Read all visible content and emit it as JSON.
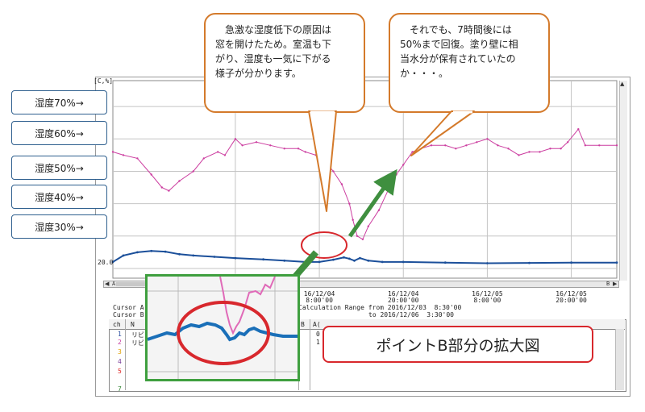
{
  "chart_data": {
    "type": "line",
    "unit_label": "[C,%]",
    "y_tick": "20.0",
    "x_ticks": [
      {
        "date": "16/12/04",
        "time": "8:00'00",
        "x_hours": 32
      },
      {
        "date": "16/12/04",
        "time": "20:00'00",
        "x_hours": 44
      },
      {
        "date": "16/12/05",
        "time": "8:00'00",
        "x_hours": 56
      },
      {
        "date": "16/12/05",
        "time": "20:00'00",
        "x_hours": 68
      }
    ],
    "x_range_hours": [
      2.5,
      74.5
    ],
    "y_range": [
      17,
      78
    ],
    "grid": true,
    "series": [
      {
        "color": "#cc3ea0",
        "points": [
          [
            2.5,
            56
          ],
          [
            4,
            55
          ],
          [
            6,
            54
          ],
          [
            8,
            49
          ],
          [
            9.5,
            45
          ],
          [
            10.5,
            44
          ],
          [
            12,
            47
          ],
          [
            14,
            50
          ],
          [
            15.5,
            54
          ],
          [
            17.5,
            56
          ],
          [
            18.5,
            55
          ],
          [
            20,
            60
          ],
          [
            21,
            58
          ],
          [
            23,
            59
          ],
          [
            25,
            58
          ],
          [
            27,
            57
          ],
          [
            29,
            57
          ],
          [
            30,
            56
          ],
          [
            31.5,
            55
          ],
          [
            32.5,
            54
          ],
          [
            34,
            50
          ],
          [
            35.2,
            46
          ],
          [
            36.3,
            40
          ],
          [
            36.8,
            35
          ],
          [
            37.4,
            30
          ],
          [
            38.2,
            29
          ],
          [
            39,
            33
          ],
          [
            40.5,
            38
          ],
          [
            41.8,
            44
          ],
          [
            43,
            49
          ],
          [
            44,
            52
          ],
          [
            45.3,
            56
          ],
          [
            46.5,
            57
          ],
          [
            48,
            58
          ],
          [
            50,
            58
          ],
          [
            51.5,
            57
          ],
          [
            53,
            58
          ],
          [
            54.5,
            59
          ],
          [
            56,
            60
          ],
          [
            57.5,
            58
          ],
          [
            59,
            57
          ],
          [
            60.5,
            55
          ],
          [
            62,
            56
          ],
          [
            63.5,
            56
          ],
          [
            65,
            57
          ],
          [
            66.5,
            57
          ],
          [
            67.5,
            59
          ],
          [
            69,
            63
          ],
          [
            70,
            58
          ],
          [
            72,
            58
          ],
          [
            74.5,
            58
          ]
        ]
      },
      {
        "color": "#1b4f9a",
        "points": [
          [
            2.5,
            22
          ],
          [
            4,
            24
          ],
          [
            6,
            25
          ],
          [
            8,
            25.4
          ],
          [
            10,
            25.2
          ],
          [
            12,
            24.4
          ],
          [
            14,
            24
          ],
          [
            17,
            23.6
          ],
          [
            20,
            23.2
          ],
          [
            24,
            22.8
          ],
          [
            27,
            22.4
          ],
          [
            30,
            22
          ],
          [
            32,
            22
          ],
          [
            34,
            22.7
          ],
          [
            35.5,
            23.4
          ],
          [
            36.3,
            23
          ],
          [
            37,
            22.4
          ],
          [
            37.8,
            23.2
          ],
          [
            39,
            22.4
          ],
          [
            41,
            22
          ],
          [
            44,
            22
          ],
          [
            50,
            21.8
          ],
          [
            56,
            21.6
          ],
          [
            62,
            21.7
          ],
          [
            68,
            21.8
          ],
          [
            74.5,
            21.8
          ]
        ]
      }
    ]
  },
  "info": {
    "cursor_a": "Cursor A",
    "cursor_b": "Cursor B",
    "calc_range_from": "Calculation Range from 2016/12/03  8:30'00",
    "calc_range_to": "to 2016/12/06  3:30'00"
  },
  "table": {
    "col_ch": "ch",
    "col_n": "N",
    "col_b": "B",
    "col_a": "A(",
    "rows": [
      {
        "ch": "1",
        "name": "リビン",
        "a": "0",
        "color": "#2a4ea0"
      },
      {
        "ch": "2",
        "name": "リビン",
        "a": "1",
        "color": "#c63da0"
      },
      {
        "ch": "3",
        "name": "",
        "a": "",
        "color": "#e0a000"
      },
      {
        "ch": "4",
        "name": "",
        "a": "",
        "color": "#7a3e9a"
      },
      {
        "ch": "5",
        "name": "",
        "a": "",
        "color": "#d22"
      },
      {
        "ch": "7",
        "name": "",
        "a": "",
        "color": "#3a8a3a"
      }
    ]
  },
  "humidity_labels": [
    {
      "text": "湿度70%→"
    },
    {
      "text": "湿度60%→"
    },
    {
      "text": "湿度50%→"
    },
    {
      "text": "湿度40%→"
    },
    {
      "text": "湿度30%→"
    }
  ],
  "callouts": {
    "left": [
      "急激な湿度低下の原因は",
      "窓を開けたため。室温も下",
      "がり、湿度も一気に下がる",
      "様子が分かります。"
    ],
    "right": [
      "それでも、7時間後には",
      "50%まで回復。塗り壁に相",
      "当水分が保有されていたの",
      "か・・・。"
    ]
  },
  "zoom_label": "ポイントB部分の拡大図",
  "scroll_left_label": "A",
  "scroll_right_label": "B",
  "colors": {
    "accent_orange": "#d47a2b",
    "highlight_red": "#d8282d",
    "arrow_green": "#3f8f3f"
  }
}
